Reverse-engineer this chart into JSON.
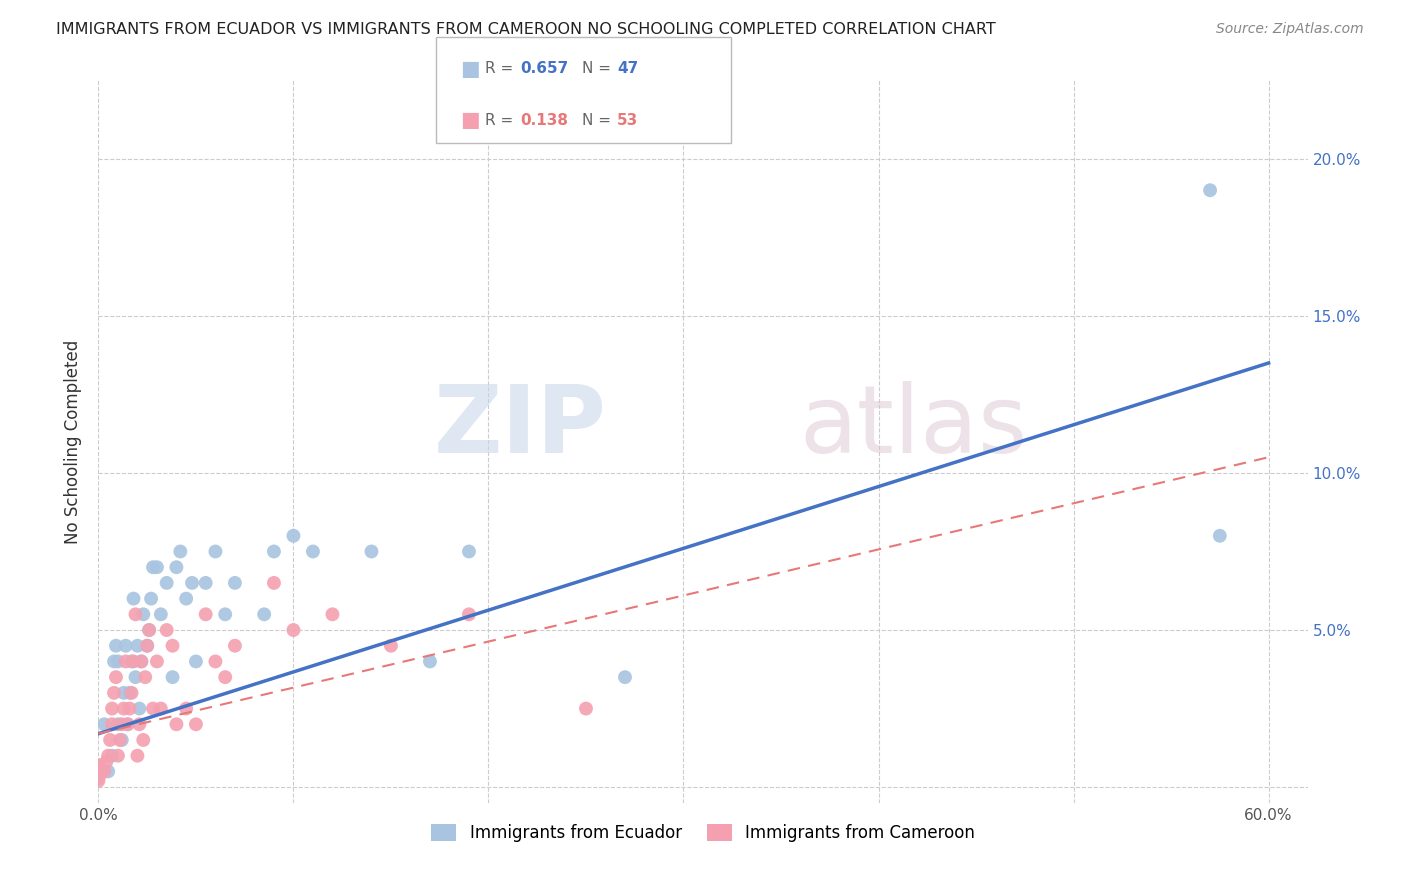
{
  "title": "IMMIGRANTS FROM ECUADOR VS IMMIGRANTS FROM CAMEROON NO SCHOOLING COMPLETED CORRELATION CHART",
  "source": "Source: ZipAtlas.com",
  "ylabel": "No Schooling Completed",
  "xlim": [
    0,
    0.62
  ],
  "ylim": [
    -0.005,
    0.225
  ],
  "xticks": [
    0.0,
    0.1,
    0.2,
    0.3,
    0.4,
    0.5,
    0.6
  ],
  "yticks": [
    0.0,
    0.05,
    0.1,
    0.15,
    0.2
  ],
  "xtick_labels_left": [
    "0.0%",
    "",
    "",
    "",
    "",
    "",
    ""
  ],
  "xtick_labels_right": [
    "",
    "",
    "",
    "",
    "",
    "",
    "60.0%"
  ],
  "ytick_labels_right": [
    "",
    "5.0%",
    "10.0%",
    "15.0%",
    "20.0%"
  ],
  "ecuador_color": "#a8c4e0",
  "cameroon_color": "#f4a0b0",
  "ecuador_line_color": "#4472c4",
  "cameroon_line_color": "#e87878",
  "r_ecuador": 0.657,
  "n_ecuador": 47,
  "r_cameroon": 0.138,
  "n_cameroon": 53,
  "watermark_zip": "ZIP",
  "watermark_atlas": "atlas",
  "ecuador_x": [
    0.002,
    0.003,
    0.005,
    0.007,
    0.008,
    0.009,
    0.01,
    0.01,
    0.012,
    0.013,
    0.014,
    0.015,
    0.016,
    0.017,
    0.018,
    0.019,
    0.02,
    0.021,
    0.022,
    0.023,
    0.025,
    0.026,
    0.027,
    0.028,
    0.03,
    0.032,
    0.035,
    0.038,
    0.04,
    0.042,
    0.045,
    0.048,
    0.05,
    0.055,
    0.06,
    0.065,
    0.07,
    0.085,
    0.09,
    0.1,
    0.11,
    0.14,
    0.17,
    0.19,
    0.27,
    0.57,
    0.575
  ],
  "ecuador_y": [
    0.005,
    0.02,
    0.005,
    0.01,
    0.04,
    0.045,
    0.02,
    0.04,
    0.015,
    0.03,
    0.045,
    0.02,
    0.03,
    0.04,
    0.06,
    0.035,
    0.045,
    0.025,
    0.04,
    0.055,
    0.045,
    0.05,
    0.06,
    0.07,
    0.07,
    0.055,
    0.065,
    0.035,
    0.07,
    0.075,
    0.06,
    0.065,
    0.04,
    0.065,
    0.075,
    0.055,
    0.065,
    0.055,
    0.075,
    0.08,
    0.075,
    0.075,
    0.04,
    0.075,
    0.035,
    0.19,
    0.08
  ],
  "cameroon_x": [
    0.0,
    0.0,
    0.0,
    0.0,
    0.0,
    0.0,
    0.0,
    0.0,
    0.0,
    0.0,
    0.003,
    0.004,
    0.005,
    0.006,
    0.007,
    0.007,
    0.008,
    0.009,
    0.01,
    0.011,
    0.012,
    0.013,
    0.014,
    0.015,
    0.016,
    0.017,
    0.018,
    0.019,
    0.02,
    0.021,
    0.022,
    0.023,
    0.024,
    0.025,
    0.026,
    0.028,
    0.03,
    0.032,
    0.035,
    0.038,
    0.04,
    0.045,
    0.05,
    0.055,
    0.06,
    0.065,
    0.07,
    0.09,
    0.1,
    0.12,
    0.15,
    0.19,
    0.25
  ],
  "cameroon_y": [
    0.002,
    0.003,
    0.003,
    0.004,
    0.004,
    0.005,
    0.005,
    0.006,
    0.006,
    0.007,
    0.005,
    0.008,
    0.01,
    0.015,
    0.02,
    0.025,
    0.03,
    0.035,
    0.01,
    0.015,
    0.02,
    0.025,
    0.04,
    0.02,
    0.025,
    0.03,
    0.04,
    0.055,
    0.01,
    0.02,
    0.04,
    0.015,
    0.035,
    0.045,
    0.05,
    0.025,
    0.04,
    0.025,
    0.05,
    0.045,
    0.02,
    0.025,
    0.02,
    0.055,
    0.04,
    0.035,
    0.045,
    0.065,
    0.05,
    0.055,
    0.045,
    0.055,
    0.025
  ],
  "ecuador_line": [
    0.0,
    0.6,
    0.017,
    0.135
  ],
  "cameroon_line": [
    0.0,
    0.6,
    0.017,
    0.105
  ]
}
